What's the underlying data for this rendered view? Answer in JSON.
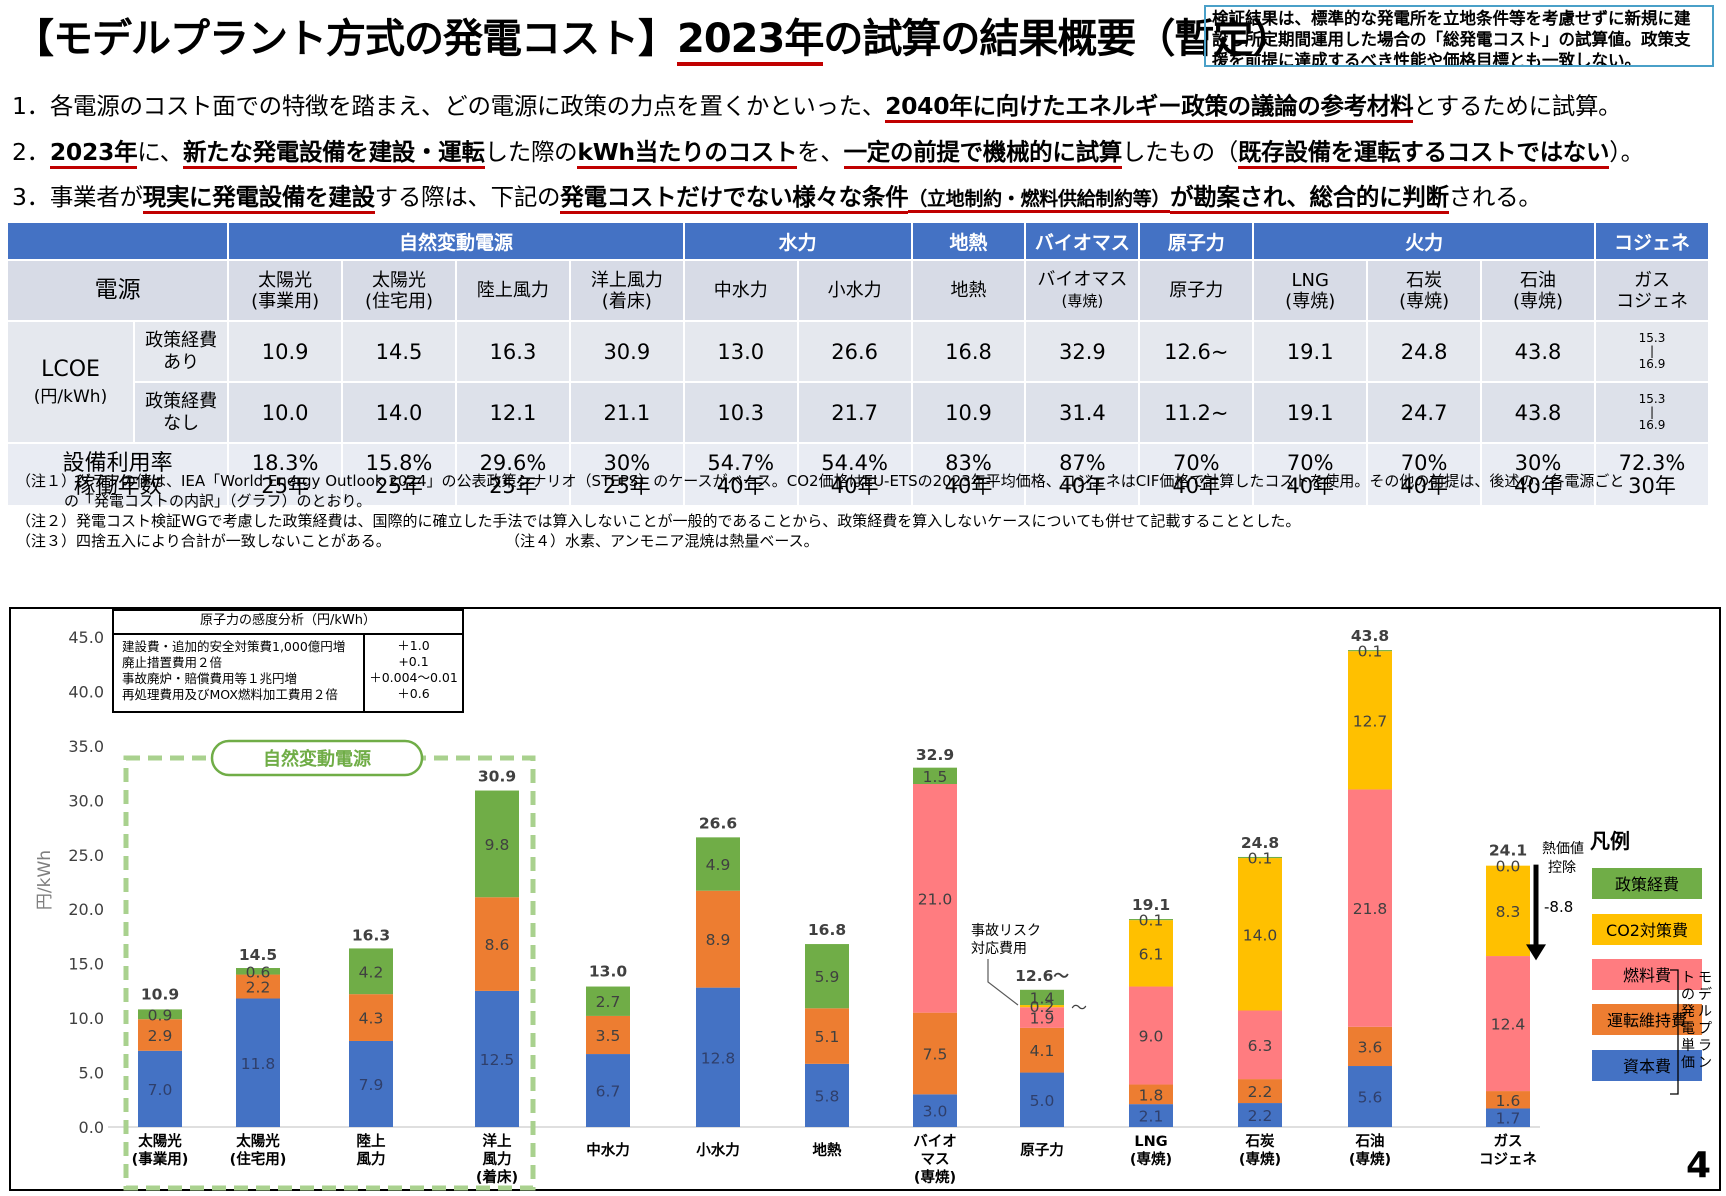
{
  "header": {
    "title_pre": "【モデルプラント方式の発電コスト】",
    "title_year": "2023年",
    "title_post": "の試算の結果概要（暫定）",
    "note_box": "検証結果は、標準的な発電所を立地条件等を考慮せずに新規に建設し所定期間運用した場合の「総発電コスト」の試算値。政策支援を前提に達成するべき性能や価格目標とも一致しない。"
  },
  "points": {
    "p1_a": "1．各電源のコスト面での特徴を踏まえ、どの電源に政策の力点を置くかといった、",
    "p1_b": "2040年に向けたエネルギー政策の議論の参考材料",
    "p1_c": "とするために試算。",
    "p2_a": "2．",
    "p2_b": "2023年",
    "p2_c": "に、",
    "p2_d": "新たな発電設備を建設・運転",
    "p2_e": "した際の",
    "p2_f": "kWh当たりのコスト",
    "p2_g": "を、",
    "p2_h": "一定の前提で機械的に試算",
    "p2_i": "したもの（",
    "p2_j": "既存設備を運転するコストではない",
    "p2_k": "）。",
    "p3_a": "3．事業者が",
    "p3_b": "現実に発電設備を建設",
    "p3_c": "する際は、下記の",
    "p3_d": "発電コストだけでない様々な条件",
    "p3_e": "（立地制約・燃料供給制約等）",
    "p3_f": "が勘案され、総合的に判断",
    "p3_g": "される。"
  },
  "table": {
    "groups": {
      "renew": "自然変動電源",
      "hydro": "水力",
      "geo": "地熱",
      "bio": "バイオマス",
      "nuc": "原子力",
      "thermal": "火力",
      "cogen": "コジェネ"
    },
    "source_label": "電源",
    "sources": [
      {
        "l1": "太陽光",
        "l2": "(事業用)"
      },
      {
        "l1": "太陽光",
        "l2": "(住宅用)"
      },
      {
        "l1": "陸上風力",
        "l2": ""
      },
      {
        "l1": "洋上風力",
        "l2": "(着床)"
      },
      {
        "l1": "中水力",
        "l2": ""
      },
      {
        "l1": "小水力",
        "l2": ""
      },
      {
        "l1": "地熱",
        "l2": ""
      },
      {
        "l1": "バイオマス",
        "l2": "(専焼)"
      },
      {
        "l1": "原子力",
        "l2": ""
      },
      {
        "l1": "LNG",
        "l2": "(専焼)"
      },
      {
        "l1": "石炭",
        "l2": "(専焼)"
      },
      {
        "l1": "石油",
        "l2": "(専焼)"
      },
      {
        "l1": "ガス",
        "l2": "コジェネ"
      }
    ],
    "lcoe_label": "LCOE",
    "lcoe_unit": "(円/kWh)",
    "with_policy": {
      "l1": "政策経費",
      "l2": "あり"
    },
    "without_policy": {
      "l1": "政策経費",
      "l2": "なし"
    },
    "with_values": [
      "10.9",
      "14.5",
      "16.3",
      "30.9",
      "13.0",
      "26.6",
      "16.8",
      "32.9",
      "12.6~",
      "19.1",
      "24.8",
      "43.8"
    ],
    "without_values": [
      "10.0",
      "14.0",
      "12.1",
      "21.1",
      "10.3",
      "21.7",
      "10.9",
      "31.4",
      "11.2~",
      "19.1",
      "24.7",
      "43.8"
    ],
    "cogen_range": {
      "a": "15.3",
      "sep": "|",
      "b": "16.9"
    },
    "cf_label1": "設備利用率",
    "cf_label2": "稼働年数",
    "capacity": [
      "18.3%",
      "15.8%",
      "29.6%",
      "30%",
      "54.7%",
      "54.4%",
      "83%",
      "87%",
      "70%",
      "70%",
      "70%",
      "30%",
      "72.3%"
    ],
    "years": [
      "25年",
      "25年",
      "25年",
      "25年",
      "40年",
      "40年",
      "40年",
      "40年",
      "40年",
      "40年",
      "40年",
      "40年",
      "30年"
    ]
  },
  "footnotes": {
    "n1a": "（注１）グラフの値は、IEA「World Energy Outlook 2024」の公表政策シナリオ（STEPS）のケースがベース。CO2価格はEU-ETSの2023年平均価格、コジェネはCIF価格で計算したコストを使用。その他の前提は、後述の、各電源ごと",
    "n1b": "の「発電コストの内訳」（グラフ）のとおり。",
    "n2": "（注２）発電コスト検証WGで考慮した政策経費は、国際的に確立した手法では算入しないことが一般的であることから、政策経費を算入しないケースについても併せて記載することとした。",
    "n3": "（注３）四捨五入により合計が一致しないことがある。",
    "n4": "（注４）水素、アンモニア混焼は熱量ベース。"
  },
  "sensitivity": {
    "title": "原子力の感度分析（円/kWh）",
    "items": [
      {
        "label": "建設費・追加的安全対策費1,000億円増",
        "value": "＋1.0"
      },
      {
        "label": "廃止措置費用２倍",
        "value": "+0.1"
      },
      {
        "label": "事故廃炉・賠償費用等１兆円増",
        "value": "＋0.004〜0.01"
      },
      {
        "label": "再処理費用及びMOX燃料加工費用２倍",
        "value": "＋0.6"
      }
    ]
  },
  "colors": {
    "capital": "#4472c4",
    "om": "#ed7d31",
    "fuel": "#ff7c80",
    "co2": "#ffc000",
    "policy": "#70ad47",
    "header_blue": "#4472c4",
    "renew_box": "#a9d18e",
    "underline": "#c00000"
  },
  "chart_data": {
    "type": "bar",
    "stacked": true,
    "ylabel": "円/kWh",
    "ylim": [
      0,
      45
    ],
    "yticks": [
      "0.0",
      "5.0",
      "10.0",
      "15.0",
      "20.0",
      "25.0",
      "30.0",
      "35.0",
      "40.0",
      "45.0"
    ],
    "categories": [
      [
        "太陽光",
        "(事業用)"
      ],
      [
        "太陽光",
        "(住宅用)"
      ],
      [
        "陸上",
        "風力"
      ],
      [
        "洋上",
        "風力",
        "(着床)"
      ],
      [
        "中水力"
      ],
      [
        "小水力"
      ],
      [
        "地熱"
      ],
      [
        "バイオ",
        "マス",
        "(専焼)"
      ],
      [
        "原子力"
      ],
      [
        "LNG",
        "(専焼)"
      ],
      [
        "石炭",
        "(専焼)"
      ],
      [
        "石油",
        "(専焼)"
      ],
      [
        "ガス",
        "コジェネ"
      ]
    ],
    "series": [
      {
        "name": "資本費",
        "values": [
          7.0,
          11.8,
          7.9,
          12.5,
          6.7,
          12.8,
          5.8,
          3.0,
          5.0,
          2.1,
          2.2,
          5.6,
          1.7
        ],
        "labels": [
          "7.0",
          "11.8",
          "7.9",
          "12.5",
          "6.7",
          "12.8",
          "5.8",
          "3.0",
          "5.0",
          "2.1",
          "2.2",
          "5.6",
          "1.7"
        ]
      },
      {
        "name": "運転維持費",
        "values": [
          2.9,
          2.2,
          4.3,
          8.6,
          3.5,
          8.9,
          5.1,
          7.5,
          4.1,
          1.8,
          2.2,
          3.6,
          1.6
        ],
        "labels": [
          "2.9",
          "2.2",
          "4.3",
          "8.6",
          "3.5",
          "8.9",
          "5.1",
          "7.5",
          "4.1",
          "1.8",
          "2.2",
          "3.6",
          "1.6"
        ]
      },
      {
        "name": "燃料費",
        "values": [
          0,
          0,
          0,
          0,
          0,
          0,
          0,
          21.0,
          1.9,
          9.0,
          6.3,
          21.8,
          12.4
        ],
        "labels": [
          "",
          "",
          "",
          "",
          "",
          "",
          "",
          "21.0",
          "1.9",
          "9.0",
          "6.3",
          "21.8",
          "12.4"
        ]
      },
      {
        "name": "CO2対策費",
        "values": [
          0,
          0,
          0,
          0,
          0,
          0,
          0,
          0,
          0.2,
          6.1,
          14.0,
          12.7,
          8.3
        ],
        "labels": [
          "",
          "",
          "",
          "",
          "",
          "",
          "",
          "",
          "0.2",
          "6.1",
          "14.0",
          "12.7",
          "8.3"
        ]
      },
      {
        "name": "政策経費",
        "values": [
          0.9,
          0.6,
          4.2,
          9.8,
          2.7,
          4.9,
          5.9,
          1.5,
          1.4,
          0.1,
          0.1,
          0.1,
          0.0
        ],
        "labels": [
          "0.9",
          "0.6",
          "4.2",
          "9.8",
          "2.7",
          "4.9",
          "5.9",
          "1.5",
          "1.4",
          "0.1",
          "0.1",
          "0.1",
          "0.0"
        ]
      }
    ],
    "totals": [
      10.9,
      14.5,
      16.3,
      30.9,
      13.0,
      26.6,
      16.8,
      32.9,
      12.6,
      19.1,
      24.8,
      43.8,
      24.1
    ],
    "total_labels": [
      "10.9",
      "14.5",
      "16.3",
      "30.9",
      "13.0",
      "26.6",
      "16.8",
      "32.9",
      "12.6～",
      "19.1",
      "24.8",
      "43.8",
      "24.1"
    ],
    "nuclear_tilde": "～",
    "renew_group_label": "自然変動電源",
    "accident_label": [
      "事故リスク",
      "対応費用"
    ],
    "heat_credit_label": [
      "熱価値",
      "控除"
    ],
    "heat_credit_value": "-8.8",
    "heat_credit_amount": -8.8,
    "legend_title": "凡例",
    "legend": [
      "政策経費",
      "CO2対策費",
      "燃料費",
      "運転維持費",
      "資本費"
    ],
    "legend_bracket": "モデルプラントの発電単価"
  },
  "page_number": "4"
}
